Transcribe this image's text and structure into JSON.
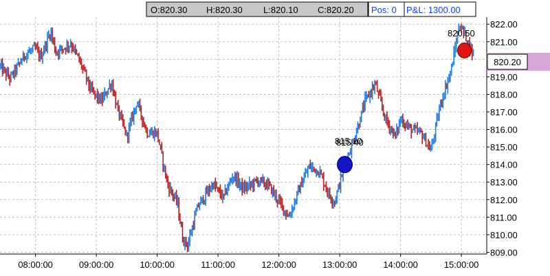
{
  "ohlc": {
    "open": "O:820.30",
    "high": "H:820.30",
    "low": "L:820.10",
    "close": "C:820.20",
    "pos": "Pos: 0",
    "pnl": "P&L: 1300.00"
  },
  "last_price_label": "820.20",
  "annotations": {
    "buy_price_a": "815.10",
    "buy_price_b": "815.40",
    "sell_price": "820.50"
  },
  "colors": {
    "up": "#1e7be0",
    "down": "#b22222",
    "buy_marker": "#1414c8",
    "sell_marker": "#e01414",
    "grid": "#bdbdbd",
    "header_bg": "#c8c8c8",
    "pos_text": "#1a3cff",
    "price_tag_fill": "#d9a6d9"
  },
  "chart_data": {
    "type": "line",
    "subtype": "intraday-price-bars",
    "y_ticks": [
      "809.00",
      "810.00",
      "811.00",
      "812.00",
      "813.00",
      "814.00",
      "815.00",
      "816.00",
      "817.00",
      "818.00",
      "819.00",
      "820.00",
      "821.00",
      "822.00"
    ],
    "x_ticks": [
      "08:00:00",
      "09:00:00",
      "10:00:00",
      "11:00:00",
      "12:00:00",
      "13:00:00",
      "14:00:00",
      "15:00:00"
    ],
    "ylim": [
      808.9,
      822.4
    ],
    "xlim": [
      "07:25",
      "15:25"
    ],
    "grid": true,
    "buy_marker": {
      "time": "13:05",
      "price": 814.0
    },
    "sell_marker": {
      "time": "15:03",
      "price": 820.5
    },
    "series_anchors": [
      [
        "07:25",
        819.6
      ],
      [
        "07:35",
        818.9
      ],
      [
        "07:50",
        820.3
      ],
      [
        "08:00",
        820.6
      ],
      [
        "08:05",
        820.1
      ],
      [
        "08:15",
        821.6
      ],
      [
        "08:20",
        820.4
      ],
      [
        "08:35",
        820.9
      ],
      [
        "08:45",
        819.7
      ],
      [
        "08:55",
        818.2
      ],
      [
        "09:05",
        817.6
      ],
      [
        "09:15",
        818.7
      ],
      [
        "09:20",
        817.3
      ],
      [
        "09:30",
        815.6
      ],
      [
        "09:40",
        817.6
      ],
      [
        "09:50",
        815.8
      ],
      [
        "10:00",
        815.8
      ],
      [
        "10:10",
        812.9
      ],
      [
        "10:20",
        811.8
      ],
      [
        "10:25",
        809.8
      ],
      [
        "10:30",
        809.4
      ],
      [
        "10:40",
        811.6
      ],
      [
        "10:55",
        812.9
      ],
      [
        "11:05",
        812.1
      ],
      [
        "11:15",
        813.4
      ],
      [
        "11:25",
        812.6
      ],
      [
        "11:40",
        813.1
      ],
      [
        "11:50",
        812.8
      ],
      [
        "12:00",
        811.9
      ],
      [
        "12:10",
        811.0
      ],
      [
        "12:20",
        812.6
      ],
      [
        "12:30",
        813.9
      ],
      [
        "12:40",
        813.6
      ],
      [
        "12:50",
        812.2
      ],
      [
        "12:55",
        811.9
      ],
      [
        "13:05",
        814.0
      ],
      [
        "13:15",
        815.6
      ],
      [
        "13:25",
        817.6
      ],
      [
        "13:35",
        818.6
      ],
      [
        "13:45",
        816.6
      ],
      [
        "13:55",
        815.6
      ],
      [
        "14:00",
        816.6
      ],
      [
        "14:10",
        816.0
      ],
      [
        "14:20",
        815.8
      ],
      [
        "14:30",
        814.8
      ],
      [
        "14:40",
        817.6
      ],
      [
        "14:50",
        819.4
      ],
      [
        "14:58",
        822.0
      ],
      [
        "15:05",
        821.2
      ],
      [
        "15:12",
        820.2
      ]
    ]
  }
}
